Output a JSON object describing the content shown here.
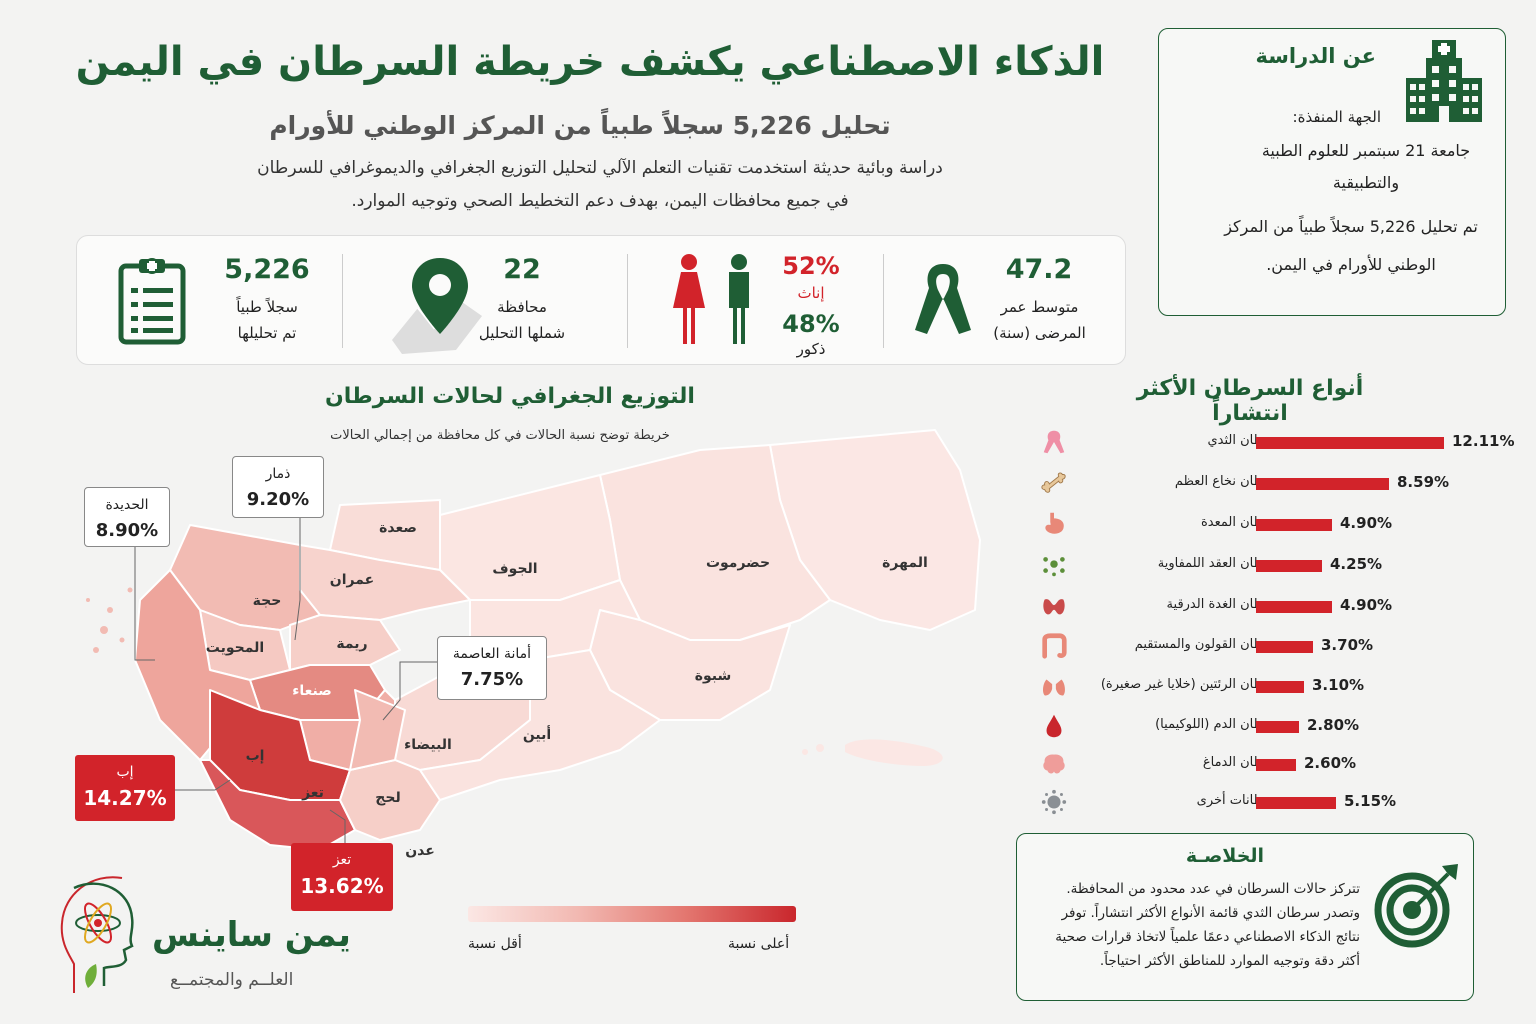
{
  "header": {
    "title": "الذكاء الاصطناعي يكشف خريطة السرطان في اليمن",
    "subtitle": "تحليل 5,226 سجلاً طبياً من المركز الوطني للأورام",
    "intro_line1": "دراسة وبائية حديثة استخدمت تقنيات التعلم الآلي لتحليل التوزيع الجغرافي والديموغرافي للسرطان",
    "intro_line2": "في جميع محافظات اليمن، بهدف دعم التخطيط الصحي وتوجيه الموارد."
  },
  "about": {
    "title": "عن الدراسة",
    "icon": "hospital-icon",
    "exec_label": "الجهة المنفذة:",
    "exec_value": "جامعة 21 سبتمبر للعلوم الطبية والتطبيقية",
    "note": "تم تحليل 5,226 سجلاً طبياً من المركز الوطني للأورام في اليمن."
  },
  "stats": {
    "records": {
      "value": "5,226",
      "line1": "سجلاً طبياً",
      "line2": "تم تحليلها",
      "icon": "clipboard-icon"
    },
    "governorates": {
      "value": "22",
      "line1": "محافظة",
      "line2": "شملها التحليل",
      "icon": "map-pin-icon"
    },
    "gender": {
      "female_pct": "52%",
      "female_label": "إناث",
      "male_pct": "48%",
      "male_label": "ذكور",
      "icon": "gender-icon"
    },
    "age": {
      "value": "47.2",
      "line1": "متوسط عمر",
      "line2": "المرضى (سنة)",
      "icon": "ribbon-icon"
    }
  },
  "map": {
    "title": "التوزيع الجغرافي لحالات السرطان",
    "subtitle": "خريطة توضح نسبة الحالات في كل محافظة من إجمالي الحالات",
    "regions": {
      "saada": "صعدة",
      "jawf": "الجوف",
      "hadramout": "حضرموت",
      "mahra": "المهرة",
      "amran": "عمران",
      "hajjah": "حجة",
      "mahwit": "المحويت",
      "raymah": "ريمة",
      "sanaa": "صنعاء",
      "ibb": "إب",
      "taiz": "تعز",
      "lahj": "لحج",
      "aden": "عدن",
      "bayda": "البيضاء",
      "abyan": "أبين",
      "shabwa": "شبوة"
    },
    "callouts": {
      "hodeidah": {
        "name": "الحديدة",
        "pct": "8.90%"
      },
      "dhamar": {
        "name": "ذمار",
        "pct": "9.20%"
      },
      "capital": {
        "name": "أمانة العاصمة",
        "pct": "7.75%"
      },
      "ibb": {
        "name": "إب",
        "pct": "14.27%"
      },
      "taiz": {
        "name": "تعز",
        "pct": "13.62%"
      }
    },
    "legend_low": "أقل نسبة",
    "legend_high": "أعلى نسبة",
    "scale_colors": [
      "#fbe7e4",
      "#f2b9b2",
      "#e3766f",
      "#c9262c"
    ]
  },
  "logo": {
    "name": "يمن ساينس",
    "tagline": "العلــم والمجتمــع",
    "icon": "science-head-icon"
  },
  "cancer_types": {
    "title": "أنواع السرطان الأكثر انتشاراً",
    "items": [
      {
        "name": "سرطان الثدي",
        "value": 12.11,
        "label": "12.11%",
        "icon": "pink-ribbon-icon"
      },
      {
        "name": "سرطان نخاع العظم",
        "value": 8.59,
        "label": "8.59%",
        "icon": "bone-icon"
      },
      {
        "name": "سرطان المعدة",
        "value": 4.9,
        "label": "4.90%",
        "icon": "stomach-icon"
      },
      {
        "name": "سرطان العقد اللمفاوية",
        "value": 4.25,
        "label": "4.25%",
        "icon": "lymph-node-icon"
      },
      {
        "name": "سرطان الغدة الدرقية",
        "value": 4.9,
        "label": "4.90%",
        "icon": "thyroid-icon"
      },
      {
        "name": "سرطان القولون والمستقيم",
        "value": 3.7,
        "label": "3.70%",
        "icon": "colon-icon"
      },
      {
        "name": "سرطان الرئتين (خلايا غير صغيرة)",
        "value": 3.1,
        "label": "3.10%",
        "icon": "lungs-icon"
      },
      {
        "name": "سرطان الدم (اللوكيميا)",
        "value": 2.8,
        "label": "2.80%",
        "icon": "blood-drop-icon"
      },
      {
        "name": "سرطان الدماغ",
        "value": 2.6,
        "label": "2.60%",
        "icon": "brain-icon"
      },
      {
        "name": "سرطانات أخرى",
        "value": 5.15,
        "label": "5.15%",
        "icon": "virus-icon"
      }
    ]
  },
  "conclusion": {
    "title": "الخلاصـة",
    "text": "تتركز حالات السرطان في عدد محدود من المحافظة. وتصدر سرطان الثدي قائمة الأنواع الأكثر انتشاراً. توفر نتائج الذكاء الاصطناعي دعمًا علمياً لاتخاذ قرارات صحية أكثر دقة وتوجيه الموارد للمناطق الأكثر احتياجاً.",
    "icon": "target-icon"
  },
  "colors": {
    "green": "#1f5e35",
    "red": "#d2232a",
    "pink": "#f2b9b2"
  }
}
